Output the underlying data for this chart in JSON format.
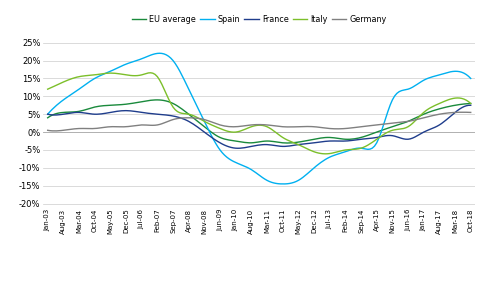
{
  "legend_labels": [
    "EU average",
    "Spain",
    "France",
    "Italy",
    "Germany"
  ],
  "legend_colors": [
    "#1a8a3c",
    "#00b0f0",
    "#1f3d8c",
    "#7cbf2a",
    "#808080"
  ],
  "ylim": [
    -21,
    27
  ],
  "yticks": [
    -20,
    -15,
    -10,
    -5,
    0,
    5,
    10,
    15,
    20,
    25
  ],
  "background_color": "#ffffff",
  "grid_color": "#cccccc",
  "x_labels": [
    "Jan-03",
    "Aug-03",
    "Mar-04",
    "Oct-04",
    "May-05",
    "Dec-05",
    "Jul-06",
    "Feb-07",
    "Sep-07",
    "Apr-08",
    "Nov-08",
    "Jun-09",
    "Jan-10",
    "Aug-10",
    "Mar-11",
    "Oct-11",
    "May-12",
    "Dec-12",
    "Jul-13",
    "Feb-14",
    "Sep-14",
    "Apr-15",
    "Nov-15",
    "Jun-16",
    "Jan-17",
    "Aug-17",
    "Mar-18",
    "Oct-18"
  ],
  "eu_avg_x": [
    0,
    7,
    14,
    21,
    28,
    35,
    42,
    49,
    56,
    63,
    70,
    77,
    84,
    91,
    98,
    105,
    112,
    119,
    126,
    133,
    140,
    147,
    154,
    161,
    168,
    175,
    182,
    189
  ],
  "eu_avg_y": [
    4.0,
    5.5,
    5.8,
    7.0,
    7.5,
    7.8,
    8.5,
    9.0,
    8.0,
    5.0,
    1.5,
    -1.5,
    -2.5,
    -3.0,
    -2.5,
    -3.0,
    -2.8,
    -2.0,
    -1.5,
    -2.0,
    -1.5,
    0.0,
    1.5,
    3.0,
    5.0,
    6.5,
    7.5,
    8.0
  ],
  "spain_x": [
    0,
    7,
    14,
    21,
    28,
    35,
    42,
    49,
    56,
    63,
    70,
    77,
    84,
    91,
    98,
    105,
    112,
    119,
    126,
    133,
    140,
    147,
    154,
    161,
    168,
    175,
    182,
    189
  ],
  "spain_y": [
    5.0,
    9.0,
    12.0,
    15.0,
    17.0,
    19.0,
    20.5,
    22.0,
    20.0,
    12.0,
    3.0,
    -5.0,
    -8.5,
    -10.5,
    -13.5,
    -14.5,
    -13.5,
    -10.0,
    -7.0,
    -5.5,
    -4.5,
    -3.0,
    9.0,
    12.0,
    14.5,
    16.0,
    17.0,
    15.0
  ],
  "france_x": [
    0,
    7,
    14,
    21,
    28,
    35,
    42,
    49,
    56,
    63,
    70,
    77,
    84,
    91,
    98,
    105,
    112,
    119,
    126,
    133,
    140,
    147,
    154,
    161,
    168,
    175,
    182,
    189
  ],
  "france_y": [
    5.0,
    5.0,
    5.5,
    5.0,
    5.5,
    6.0,
    5.5,
    5.0,
    4.5,
    3.0,
    0.0,
    -3.0,
    -4.5,
    -4.0,
    -3.5,
    -4.0,
    -3.5,
    -3.0,
    -2.5,
    -2.5,
    -2.0,
    -1.5,
    -1.0,
    -2.0,
    0.0,
    2.0,
    5.5,
    7.5
  ],
  "italy_x": [
    0,
    7,
    14,
    21,
    28,
    35,
    42,
    49,
    56,
    63,
    70,
    77,
    84,
    91,
    98,
    105,
    112,
    119,
    126,
    133,
    140,
    147,
    154,
    161,
    168,
    175,
    182,
    189
  ],
  "italy_y": [
    12.0,
    14.0,
    15.5,
    16.0,
    16.5,
    16.0,
    16.0,
    15.5,
    7.0,
    5.0,
    3.0,
    1.0,
    0.0,
    1.5,
    1.5,
    -1.5,
    -3.5,
    -5.5,
    -6.0,
    -5.0,
    -4.5,
    -2.0,
    0.5,
    1.5,
    5.5,
    8.0,
    9.5,
    8.0
  ],
  "germany_x": [
    0,
    7,
    14,
    21,
    28,
    35,
    42,
    49,
    56,
    63,
    70,
    77,
    84,
    91,
    98,
    105,
    112,
    119,
    126,
    133,
    140,
    147,
    154,
    161,
    168,
    175,
    182,
    189
  ],
  "germany_y": [
    0.5,
    0.5,
    1.0,
    1.0,
    1.5,
    1.5,
    2.0,
    2.0,
    3.5,
    4.0,
    3.5,
    2.0,
    1.5,
    2.0,
    2.0,
    1.5,
    1.5,
    1.5,
    1.0,
    1.0,
    1.5,
    2.0,
    2.5,
    3.0,
    4.0,
    5.0,
    5.5,
    5.5
  ]
}
